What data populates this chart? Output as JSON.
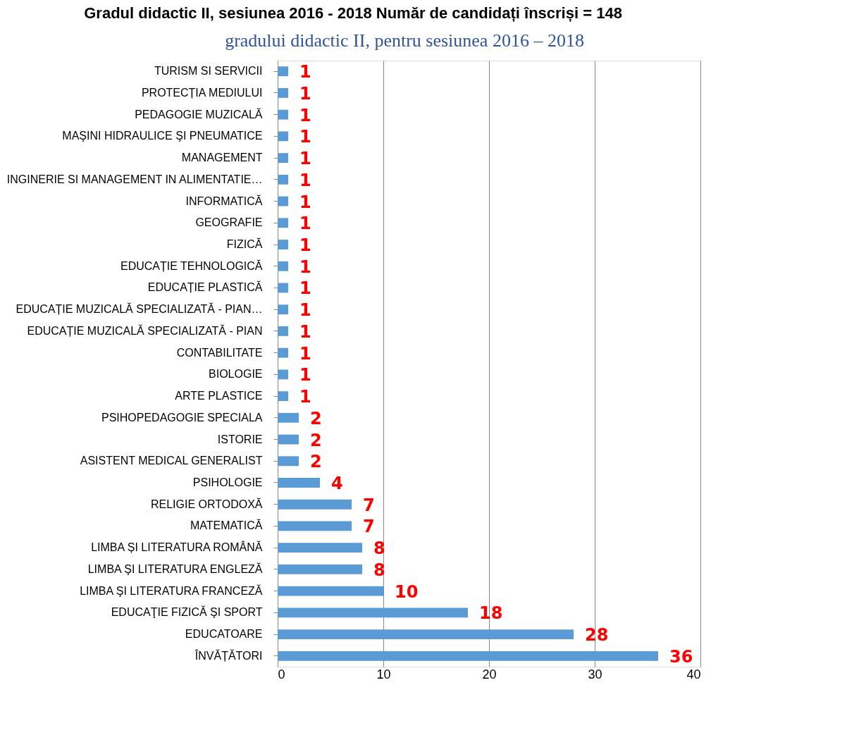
{
  "chart_data": {
    "type": "bar",
    "orientation": "horizontal",
    "title": "Gradul didactic II, sesiunea 2016 - 2018 Număr de candidați înscriși = 148",
    "annotations": [
      "gradului didactic II, pentru sesiunea 2016 – 2018"
    ],
    "categories": [
      "TURISM SI SERVICII",
      "PROTECȚIA MEDIULUI",
      "PEDAGOGIE MUZICALĂ",
      "MAŞINI HIDRAULICE ŞI PNEUMATICE",
      "MANAGEMENT",
      "INGINERIE SI MANAGEMENT IN ALIMENTATIE…",
      "INFORMATICĂ",
      "GEOGRAFIE",
      "FIZICĂ",
      "EDUCAȚIE TEHNOLOGICĂ",
      "EDUCAȚIE PLASTICĂ",
      "EDUCAȚIE MUZICALĂ SPECIALIZATĂ - PIAN…",
      "EDUCAȚIE MUZICALĂ SPECIALIZATĂ - PIAN",
      "CONTABILITATE",
      "BIOLOGIE",
      "ARTE PLASTICE",
      "PSIHOPEDAGOGIE SPECIALA",
      "ISTORIE",
      "ASISTENT MEDICAL GENERALIST",
      "PSIHOLOGIE",
      "RELIGIE ORTODOXĂ",
      "MATEMATICĂ",
      "LIMBA ȘI LITERATURA ROMÂNĂ",
      "LIMBA ŞI LITERATURA ENGLEZĂ",
      "LIMBA ŞI LITERATURA FRANCEZĂ",
      "EDUCAŢIE FIZICĂ ŞI SPORT",
      "EDUCATOARE",
      "ÎNVĂȚĂTORI"
    ],
    "values": [
      1,
      1,
      1,
      1,
      1,
      1,
      1,
      1,
      1,
      1,
      1,
      1,
      1,
      1,
      1,
      1,
      2,
      2,
      2,
      4,
      7,
      7,
      8,
      8,
      10,
      18,
      28,
      36
    ],
    "color": "#5b9bd5",
    "data_labels": true,
    "xlim": [
      0,
      40
    ],
    "xticks": [
      0,
      10,
      20,
      30,
      40
    ],
    "grid": "x"
  }
}
